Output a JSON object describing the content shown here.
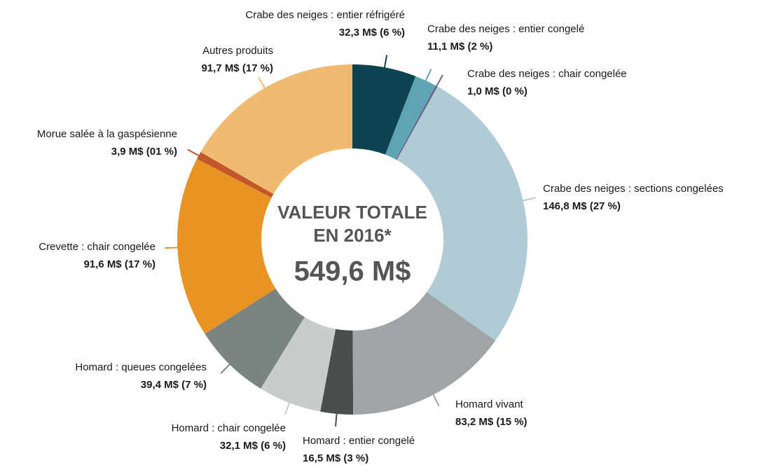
{
  "chart_data": {
    "type": "donut",
    "center_label": [
      "VALEUR TOTALE",
      "EN 2016*",
      "549,6 M$"
    ],
    "categories": [
      "Crabe des neiges : entier réfrigéré",
      "Crabe des neiges : entier congelé",
      "Crabe des neiges : chair congelée",
      "Crabe des neiges : sections congelées",
      "Homard vivant",
      "Homard : entier congelé",
      "Homard : chair congelée",
      "Homard : queues congelées",
      "Crevette : chair congelée",
      "Morue salée à la gaspésienne",
      "Autres produits"
    ],
    "values": [
      32.3,
      11.1,
      1.0,
      146.8,
      83.2,
      16.5,
      32.1,
      39.4,
      91.6,
      3.9,
      91.7
    ],
    "value_labels": [
      "32,3 M$ (6 %)",
      "11,1 M$ (2 %)",
      "1,0 M$ (0 %)",
      "146,8 M$ (27 %)",
      "83,2 M$ (15 %)",
      "16,5 M$ (3 %)",
      "32,1 M$ (6 %)",
      "39,4 M$ (7 %)",
      "91,6 M$ (17 %)",
      "3,9 M$ (01 %)",
      "91,7 M$ (17 %)"
    ],
    "colors": [
      "#0c4350",
      "#5fa4b4",
      "#6b5f8c",
      "#afcbd3",
      "#9fa4a6",
      "#4a4f4d",
      "#c6cdcc",
      "#7b8482",
      "#e99325",
      "#c2572a",
      "#f2ba70"
    ]
  }
}
